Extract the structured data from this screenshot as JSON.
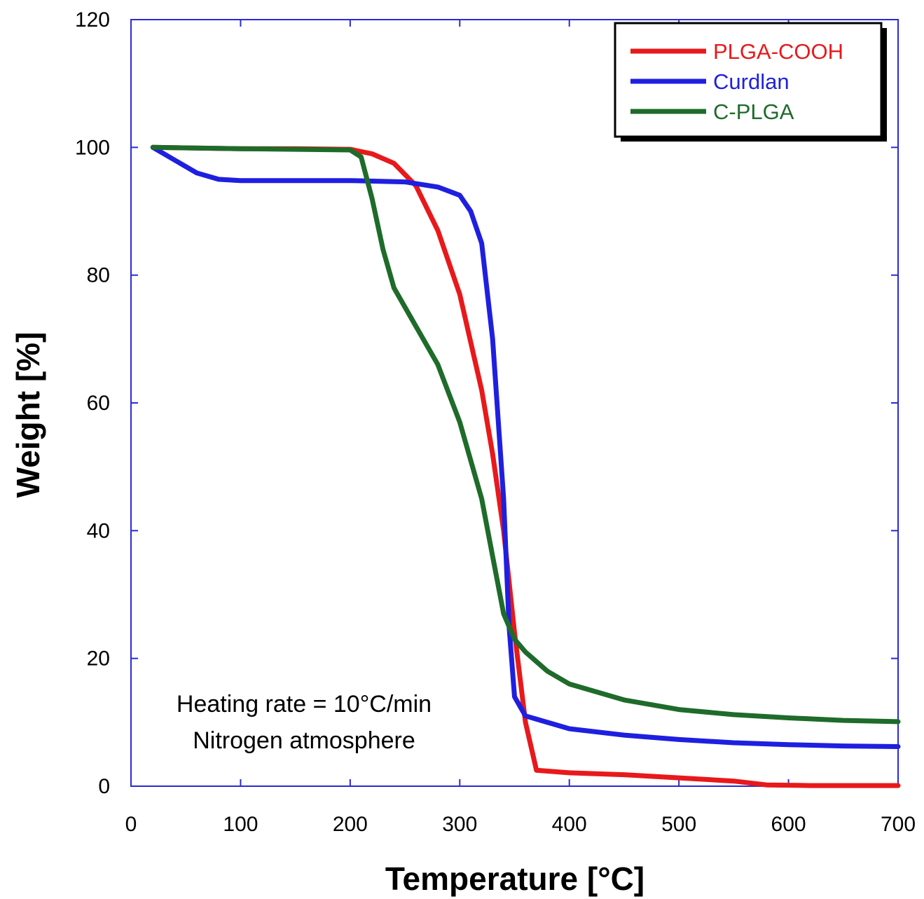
{
  "chart_data": {
    "type": "line",
    "xlabel": "Temperature [°C]",
    "ylabel": "Weight [%]",
    "xlim": [
      0,
      700
    ],
    "ylim": [
      0,
      120
    ],
    "xticks": [
      0,
      100,
      200,
      300,
      400,
      500,
      600,
      700
    ],
    "yticks": [
      0,
      20,
      40,
      60,
      80,
      100,
      120
    ],
    "grid": false,
    "legend_position": "top-right",
    "annotations": [
      "Heating rate = 10°C/min",
      "Nitrogen atmosphere"
    ],
    "series": [
      {
        "name": "PLGA-COOH",
        "color": "#e8191b",
        "points": [
          [
            20,
            100
          ],
          [
            100,
            99.8
          ],
          [
            150,
            99.8
          ],
          [
            200,
            99.7
          ],
          [
            220,
            99
          ],
          [
            240,
            97.5
          ],
          [
            260,
            94
          ],
          [
            280,
            87
          ],
          [
            300,
            77
          ],
          [
            320,
            62
          ],
          [
            330,
            52
          ],
          [
            340,
            40
          ],
          [
            350,
            24
          ],
          [
            360,
            10
          ],
          [
            370,
            2.5
          ],
          [
            400,
            2.1
          ],
          [
            450,
            1.8
          ],
          [
            500,
            1.3
          ],
          [
            550,
            0.8
          ],
          [
            580,
            0.2
          ],
          [
            620,
            0.1
          ],
          [
            700,
            0.1
          ]
        ]
      },
      {
        "name": "Curdlan",
        "color": "#1f1fe0",
        "points": [
          [
            20,
            100
          ],
          [
            40,
            98
          ],
          [
            60,
            96
          ],
          [
            80,
            95
          ],
          [
            100,
            94.8
          ],
          [
            200,
            94.8
          ],
          [
            250,
            94.6
          ],
          [
            280,
            93.8
          ],
          [
            300,
            92.5
          ],
          [
            310,
            90
          ],
          [
            320,
            85
          ],
          [
            330,
            70
          ],
          [
            340,
            45
          ],
          [
            345,
            25
          ],
          [
            350,
            14
          ],
          [
            360,
            11
          ],
          [
            400,
            9
          ],
          [
            450,
            8
          ],
          [
            500,
            7.3
          ],
          [
            550,
            6.8
          ],
          [
            600,
            6.5
          ],
          [
            650,
            6.3
          ],
          [
            700,
            6.2
          ]
        ]
      },
      {
        "name": "C-PLGA",
        "color": "#1e6b2a",
        "points": [
          [
            20,
            100
          ],
          [
            100,
            99.8
          ],
          [
            200,
            99.6
          ],
          [
            210,
            98.5
          ],
          [
            220,
            92
          ],
          [
            230,
            84
          ],
          [
            240,
            78
          ],
          [
            260,
            72
          ],
          [
            280,
            66
          ],
          [
            300,
            57
          ],
          [
            320,
            45
          ],
          [
            330,
            36
          ],
          [
            340,
            27
          ],
          [
            350,
            23
          ],
          [
            360,
            21
          ],
          [
            380,
            18
          ],
          [
            400,
            16
          ],
          [
            450,
            13.5
          ],
          [
            500,
            12
          ],
          [
            550,
            11.2
          ],
          [
            600,
            10.7
          ],
          [
            650,
            10.3
          ],
          [
            700,
            10.1
          ]
        ]
      }
    ]
  }
}
